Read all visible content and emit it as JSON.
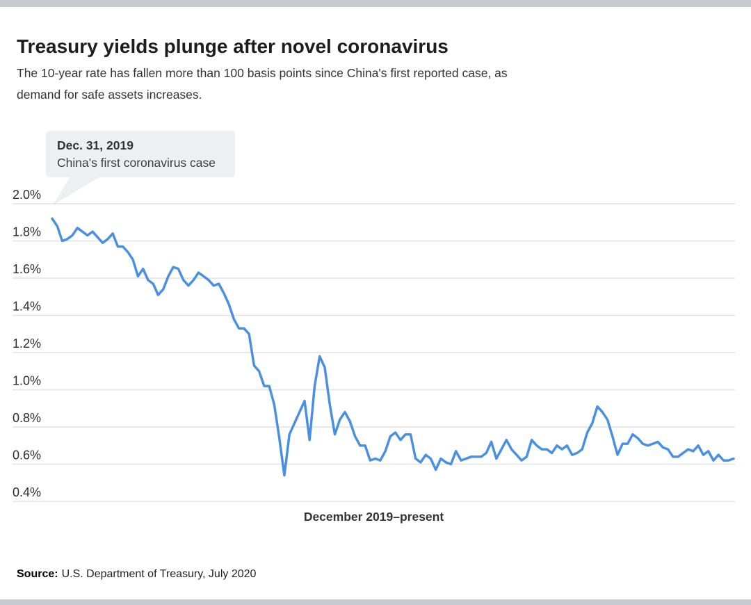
{
  "header": {
    "title": "Treasury yields plunge after novel coronavirus",
    "subtitle": "The 10-year rate has fallen more than 100 basis points since China's first reported case, as demand for safe assets increases."
  },
  "callout": {
    "date": "Dec. 31, 2019",
    "text": "China's first coronavirus case"
  },
  "chart_data": {
    "type": "line",
    "xlabel": "December 2019–present",
    "ylim": [
      0.4,
      2.0
    ],
    "grid": "horizontal",
    "legend": "none",
    "line_color": "#4a90e2",
    "gridline_color": "#e2e2e2",
    "y_ticks": [
      {
        "label": "2.0%",
        "value": 2.0
      },
      {
        "label": "1.8%",
        "value": 1.8
      },
      {
        "label": "1.6%",
        "value": 1.6
      },
      {
        "label": "1.4%",
        "value": 1.4
      },
      {
        "label": "1.2%",
        "value": 1.2
      },
      {
        "label": "1.0%",
        "value": 1.0
      },
      {
        "label": "0.8%",
        "value": 0.8
      },
      {
        "label": "0.6%",
        "value": 0.6
      },
      {
        "label": "0.4%",
        "value": 0.4
      }
    ],
    "values": [
      1.92,
      1.88,
      1.8,
      1.81,
      1.83,
      1.87,
      1.85,
      1.83,
      1.85,
      1.82,
      1.79,
      1.81,
      1.84,
      1.77,
      1.77,
      1.74,
      1.7,
      1.61,
      1.65,
      1.59,
      1.57,
      1.51,
      1.54,
      1.61,
      1.66,
      1.65,
      1.59,
      1.56,
      1.59,
      1.63,
      1.61,
      1.59,
      1.56,
      1.57,
      1.52,
      1.46,
      1.38,
      1.33,
      1.33,
      1.3,
      1.13,
      1.1,
      1.02,
      1.02,
      0.92,
      0.74,
      0.54,
      0.76,
      0.82,
      0.88,
      0.94,
      0.73,
      1.02,
      1.18,
      1.12,
      0.92,
      0.76,
      0.84,
      0.88,
      0.83,
      0.75,
      0.7,
      0.7,
      0.62,
      0.63,
      0.62,
      0.67,
      0.75,
      0.77,
      0.73,
      0.76,
      0.76,
      0.63,
      0.61,
      0.65,
      0.63,
      0.57,
      0.63,
      0.61,
      0.6,
      0.67,
      0.62,
      0.63,
      0.64,
      0.64,
      0.64,
      0.66,
      0.72,
      0.63,
      0.68,
      0.73,
      0.68,
      0.65,
      0.62,
      0.64,
      0.73,
      0.7,
      0.68,
      0.68,
      0.66,
      0.7,
      0.68,
      0.7,
      0.65,
      0.66,
      0.68,
      0.77,
      0.82,
      0.91,
      0.88,
      0.84,
      0.75,
      0.65,
      0.71,
      0.71,
      0.76,
      0.74,
      0.71,
      0.7,
      0.71,
      0.72,
      0.69,
      0.68,
      0.64,
      0.64,
      0.66,
      0.68,
      0.67,
      0.7,
      0.65,
      0.67,
      0.62,
      0.65,
      0.62,
      0.62,
      0.63
    ]
  },
  "source": {
    "label": "Source:",
    "text": "U.S. Department of Treasury, July 2020"
  },
  "colors": {
    "line": "#4a90e2",
    "gridline": "#e2e2e2",
    "callout_bg": "#edeff2",
    "frame_bar": "#c6c9d0",
    "tick_label": "#2d2d2d"
  }
}
